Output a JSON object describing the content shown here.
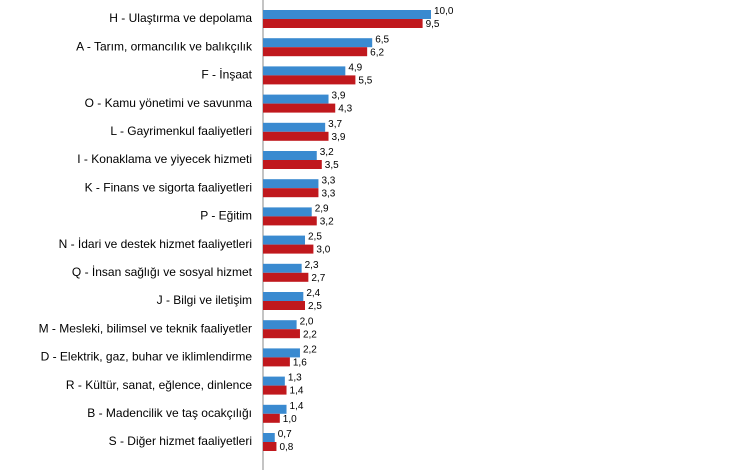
{
  "chart_data": {
    "type": "bar",
    "orientation": "horizontal",
    "categories": [
      "H - Ulaştırma ve depolama",
      "A - Tarım, ormancılık ve balıkçılık",
      "F - İnşaat",
      "O - Kamu yönetimi ve savunma",
      "L - Gayrimenkul faaliyetleri",
      "I - Konaklama ve yiyecek hizmeti",
      "K - Finans ve sigorta faaliyetleri",
      "P - Eğitim",
      "N - İdari ve destek hizmet faaliyetleri",
      "Q - İnsan sağlığı ve sosyal hizmet",
      "J - Bilgi ve iletişim",
      "M - Mesleki, bilimsel ve teknik faaliyetler",
      "D - Elektrik, gaz, buhar ve iklimlendirme",
      "R - Kültür, sanat, eğlence, dinlence",
      "B - Madencilik ve taş ocakçılığı",
      "S - Diğer hizmet faaliyetleri"
    ],
    "series": [
      {
        "color": "#3a8ad0",
        "values": [
          10.0,
          6.5,
          4.9,
          3.9,
          3.7,
          3.2,
          3.3,
          2.9,
          2.5,
          2.3,
          2.4,
          2.0,
          2.2,
          1.3,
          1.4,
          0.7
        ],
        "value_labels": [
          "10,0",
          "6,5",
          "4,9",
          "3,9",
          "3,7",
          "3,2",
          "3,3",
          "2,9",
          "2,5",
          "2,3",
          "2,4",
          "2,0",
          "2,2",
          "1,3",
          "1,4",
          "0,7"
        ]
      },
      {
        "color": "#c0181d",
        "values": [
          9.5,
          6.2,
          5.5,
          4.3,
          3.9,
          3.5,
          3.3,
          3.2,
          3.0,
          2.7,
          2.5,
          2.2,
          1.6,
          1.4,
          1.0,
          0.8
        ],
        "value_labels": [
          "9,5",
          "6,2",
          "5,5",
          "4,3",
          "3,9",
          "3,5",
          "3,3",
          "3,2",
          "3,0",
          "2,7",
          "2,5",
          "2,2",
          "1,6",
          "1,4",
          "1,0",
          "0,8"
        ]
      }
    ],
    "xlim": [
      0,
      20
    ]
  }
}
